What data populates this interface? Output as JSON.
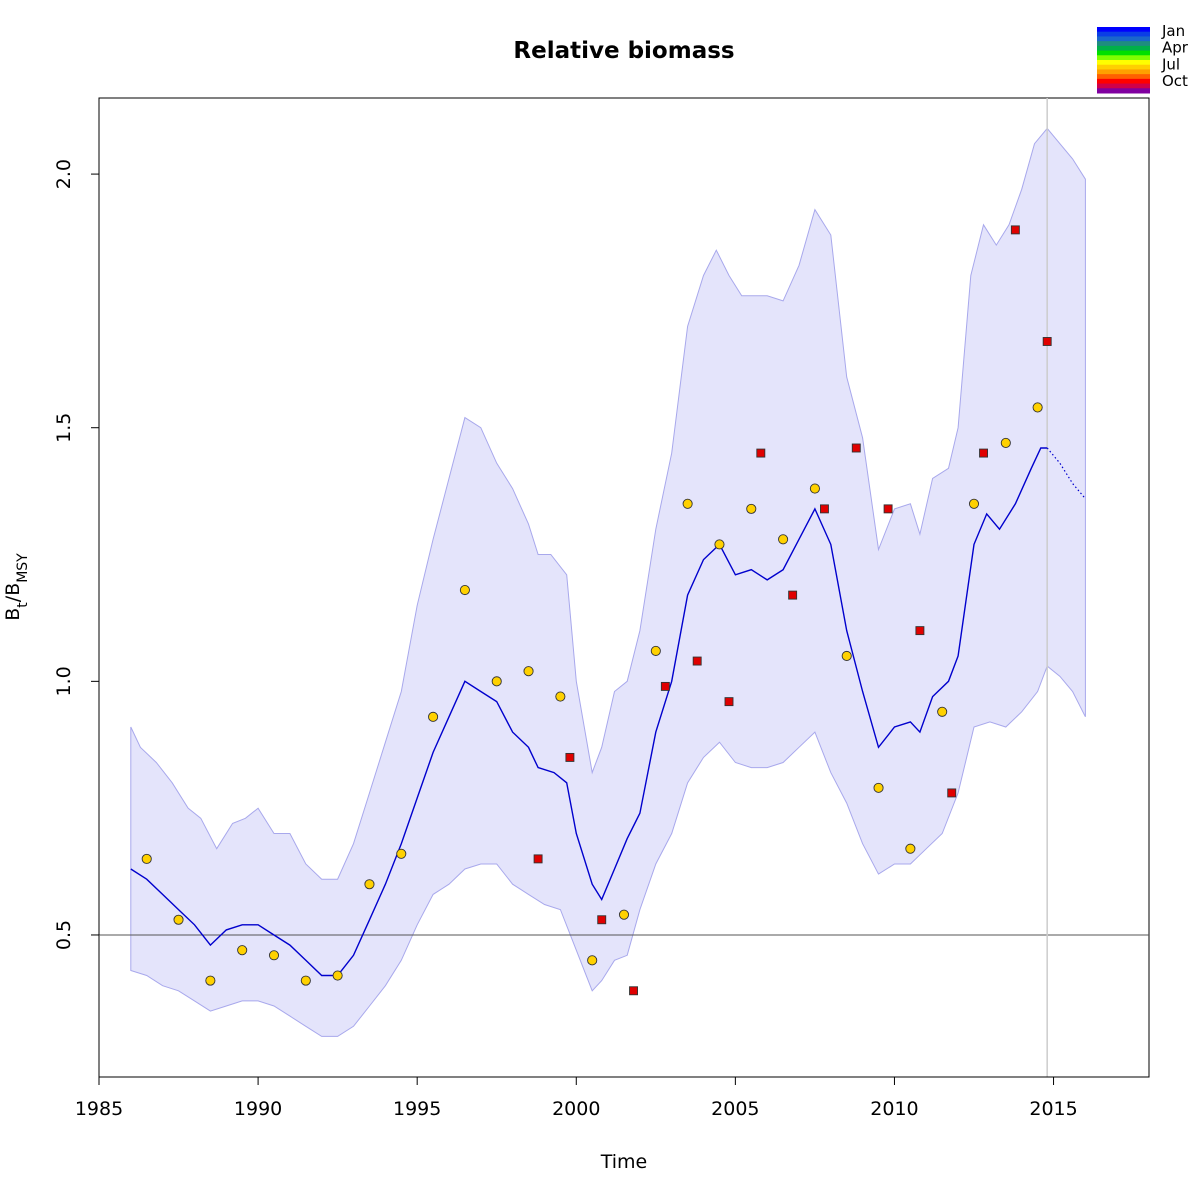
{
  "chart_data": {
    "type": "line",
    "title": "Relative biomass",
    "xlabel": "Time",
    "ylabel": {
      "main": "B",
      "sub1": "t",
      "slash": "/B",
      "sub2": "MSY"
    },
    "xlim": [
      1985,
      2018
    ],
    "ylim": [
      0.22,
      2.15
    ],
    "x_ticks": [
      1985,
      1990,
      1995,
      2000,
      2005,
      2010,
      2015
    ],
    "y_ticks": [
      0.5,
      1.0,
      1.5,
      2.0
    ],
    "x_tick_labels": [
      "1985",
      "1990",
      "1995",
      "2000",
      "2005",
      "2010",
      "2015"
    ],
    "y_tick_labels": [
      "0.5",
      "1.0",
      "1.5",
      "2.0"
    ],
    "reference_line_y": 0.5,
    "reference_line_x": 2014.8,
    "grid": false,
    "legend": {
      "position": "top-right",
      "labels": [
        "Jan",
        "Apr",
        "Jul",
        "Oct"
      ],
      "colors": [
        "#0000ff",
        "#0a3ee6",
        "#1a66cc",
        "#1f8c80",
        "#00b04a",
        "#00e000",
        "#7fff00",
        "#ffff00",
        "#ffd000",
        "#ffa000",
        "#ff6000",
        "#ff0000",
        "#d0004a",
        "#8000a0"
      ]
    },
    "colors": {
      "band_fill": "#e4e4fb",
      "band_edge": "#a8a8ec",
      "line": "#0000cd",
      "circle_fill": "#ffd100",
      "square_fill": "#e00000"
    },
    "series": [
      {
        "type": "band",
        "points": [
          [
            1986,
            0.91
          ],
          [
            1986.3,
            0.87
          ],
          [
            1986.8,
            0.84
          ],
          [
            1987.3,
            0.8
          ],
          [
            1987.8,
            0.75
          ],
          [
            1988.2,
            0.73
          ],
          [
            1988.7,
            0.67
          ],
          [
            1989.2,
            0.72
          ],
          [
            1989.6,
            0.73
          ],
          [
            1990,
            0.75
          ],
          [
            1990.5,
            0.7
          ],
          [
            1991,
            0.7
          ],
          [
            1991.5,
            0.64
          ],
          [
            1992,
            0.61
          ],
          [
            1992.5,
            0.61
          ],
          [
            1993,
            0.68
          ],
          [
            1993.5,
            0.78
          ],
          [
            1994,
            0.88
          ],
          [
            1994.5,
            0.98
          ],
          [
            1995,
            1.15
          ],
          [
            1995.5,
            1.28
          ],
          [
            1996,
            1.4
          ],
          [
            1996.5,
            1.52
          ],
          [
            1997,
            1.5
          ],
          [
            1997.5,
            1.43
          ],
          [
            1998,
            1.38
          ],
          [
            1998.5,
            1.31
          ],
          [
            1998.8,
            1.25
          ],
          [
            1999.2,
            1.25
          ],
          [
            1999.7,
            1.21
          ],
          [
            2000,
            1.0
          ],
          [
            2000.5,
            0.82
          ],
          [
            2000.8,
            0.87
          ],
          [
            2001.2,
            0.98
          ],
          [
            2001.6,
            1.0
          ],
          [
            2002,
            1.1
          ],
          [
            2002.5,
            1.3
          ],
          [
            2003,
            1.45
          ],
          [
            2003.5,
            1.7
          ],
          [
            2004,
            1.8
          ],
          [
            2004.4,
            1.85
          ],
          [
            2004.8,
            1.8
          ],
          [
            2005.2,
            1.76
          ],
          [
            2005.6,
            1.76
          ],
          [
            2006,
            1.76
          ],
          [
            2006.5,
            1.75
          ],
          [
            2007,
            1.82
          ],
          [
            2007.5,
            1.93
          ],
          [
            2008,
            1.88
          ],
          [
            2008.5,
            1.6
          ],
          [
            2009,
            1.48
          ],
          [
            2009.5,
            1.26
          ],
          [
            2010,
            1.34
          ],
          [
            2010.5,
            1.35
          ],
          [
            2010.8,
            1.29
          ],
          [
            2011.2,
            1.4
          ],
          [
            2011.7,
            1.42
          ],
          [
            2012,
            1.5
          ],
          [
            2012.4,
            1.8
          ],
          [
            2012.8,
            1.9
          ],
          [
            2013.2,
            1.86
          ],
          [
            2013.6,
            1.9
          ],
          [
            2014,
            1.97
          ],
          [
            2014.4,
            2.06
          ],
          [
            2014.8,
            2.09
          ],
          [
            2015.2,
            2.06
          ],
          [
            2015.6,
            2.03
          ],
          [
            2016,
            1.99
          ]
        ],
        "lower": [
          [
            1986,
            0.43
          ],
          [
            1986.5,
            0.42
          ],
          [
            1987,
            0.4
          ],
          [
            1987.5,
            0.39
          ],
          [
            1988,
            0.37
          ],
          [
            1988.5,
            0.35
          ],
          [
            1989,
            0.36
          ],
          [
            1989.5,
            0.37
          ],
          [
            1990,
            0.37
          ],
          [
            1990.5,
            0.36
          ],
          [
            1991,
            0.34
          ],
          [
            1991.5,
            0.32
          ],
          [
            1992,
            0.3
          ],
          [
            1992.5,
            0.3
          ],
          [
            1993,
            0.32
          ],
          [
            1993.5,
            0.36
          ],
          [
            1994,
            0.4
          ],
          [
            1994.5,
            0.45
          ],
          [
            1995,
            0.52
          ],
          [
            1995.5,
            0.58
          ],
          [
            1996,
            0.6
          ],
          [
            1996.5,
            0.63
          ],
          [
            1997,
            0.64
          ],
          [
            1997.5,
            0.64
          ],
          [
            1998,
            0.6
          ],
          [
            1998.5,
            0.58
          ],
          [
            1999,
            0.56
          ],
          [
            1999.5,
            0.55
          ],
          [
            2000,
            0.47
          ],
          [
            2000.5,
            0.39
          ],
          [
            2000.8,
            0.41
          ],
          [
            2001.2,
            0.45
          ],
          [
            2001.6,
            0.46
          ],
          [
            2002,
            0.55
          ],
          [
            2002.5,
            0.64
          ],
          [
            2003,
            0.7
          ],
          [
            2003.5,
            0.8
          ],
          [
            2004,
            0.85
          ],
          [
            2004.5,
            0.88
          ],
          [
            2005,
            0.84
          ],
          [
            2005.5,
            0.83
          ],
          [
            2006,
            0.83
          ],
          [
            2006.5,
            0.84
          ],
          [
            2007,
            0.87
          ],
          [
            2007.5,
            0.9
          ],
          [
            2008,
            0.82
          ],
          [
            2008.5,
            0.76
          ],
          [
            2009,
            0.68
          ],
          [
            2009.5,
            0.62
          ],
          [
            2010,
            0.64
          ],
          [
            2010.5,
            0.64
          ],
          [
            2011,
            0.67
          ],
          [
            2011.5,
            0.7
          ],
          [
            2012,
            0.78
          ],
          [
            2012.5,
            0.91
          ],
          [
            2013,
            0.92
          ],
          [
            2013.5,
            0.91
          ],
          [
            2014,
            0.94
          ],
          [
            2014.5,
            0.98
          ],
          [
            2014.8,
            1.03
          ],
          [
            2015.2,
            1.01
          ],
          [
            2015.6,
            0.98
          ],
          [
            2016,
            0.93
          ]
        ]
      },
      {
        "type": "line",
        "name": "",
        "points": [
          [
            1986,
            0.63
          ],
          [
            1986.5,
            0.61
          ],
          [
            1987,
            0.58
          ],
          [
            1987.5,
            0.55
          ],
          [
            1988,
            0.52
          ],
          [
            1988.5,
            0.48
          ],
          [
            1989,
            0.51
          ],
          [
            1989.5,
            0.52
          ],
          [
            1990,
            0.52
          ],
          [
            1990.5,
            0.5
          ],
          [
            1991,
            0.48
          ],
          [
            1991.5,
            0.45
          ],
          [
            1992,
            0.42
          ],
          [
            1992.5,
            0.42
          ],
          [
            1993,
            0.46
          ],
          [
            1993.5,
            0.53
          ],
          [
            1994,
            0.6
          ],
          [
            1994.5,
            0.68
          ],
          [
            1995,
            0.77
          ],
          [
            1995.5,
            0.86
          ],
          [
            1996,
            0.93
          ],
          [
            1996.5,
            1.0
          ],
          [
            1997,
            0.98
          ],
          [
            1997.5,
            0.96
          ],
          [
            1998,
            0.9
          ],
          [
            1998.5,
            0.87
          ],
          [
            1998.8,
            0.83
          ],
          [
            1999.3,
            0.82
          ],
          [
            1999.7,
            0.8
          ],
          [
            2000,
            0.7
          ],
          [
            2000.5,
            0.6
          ],
          [
            2000.8,
            0.57
          ],
          [
            2001.2,
            0.63
          ],
          [
            2001.6,
            0.69
          ],
          [
            2002,
            0.74
          ],
          [
            2002.5,
            0.9
          ],
          [
            2003,
            1.0
          ],
          [
            2003.5,
            1.17
          ],
          [
            2004,
            1.24
          ],
          [
            2004.5,
            1.27
          ],
          [
            2005,
            1.21
          ],
          [
            2005.5,
            1.22
          ],
          [
            2006,
            1.2
          ],
          [
            2006.5,
            1.22
          ],
          [
            2007,
            1.28
          ],
          [
            2007.5,
            1.34
          ],
          [
            2008,
            1.27
          ],
          [
            2008.5,
            1.1
          ],
          [
            2009,
            0.98
          ],
          [
            2009.5,
            0.87
          ],
          [
            2010,
            0.91
          ],
          [
            2010.5,
            0.92
          ],
          [
            2010.8,
            0.9
          ],
          [
            2011.2,
            0.97
          ],
          [
            2011.7,
            1.0
          ],
          [
            2012,
            1.05
          ],
          [
            2012.5,
            1.27
          ],
          [
            2012.9,
            1.33
          ],
          [
            2013.3,
            1.3
          ],
          [
            2013.8,
            1.35
          ],
          [
            2014.3,
            1.42
          ],
          [
            2014.6,
            1.46
          ],
          [
            2014.8,
            1.46
          ]
        ]
      },
      {
        "type": "dotted_line",
        "name": "",
        "points": [
          [
            2014.8,
            1.46
          ],
          [
            2015.2,
            1.43
          ],
          [
            2015.6,
            1.39
          ],
          [
            2016,
            1.36
          ]
        ]
      },
      {
        "type": "scatter",
        "marker": "circle",
        "name": "",
        "points": [
          [
            1986.5,
            0.65
          ],
          [
            1987.5,
            0.53
          ],
          [
            1988.5,
            0.41
          ],
          [
            1989.5,
            0.47
          ],
          [
            1990.5,
            0.46
          ],
          [
            1991.5,
            0.41
          ],
          [
            1992.5,
            0.42
          ],
          [
            1993.5,
            0.6
          ],
          [
            1994.5,
            0.66
          ],
          [
            1995.5,
            0.93
          ],
          [
            1996.5,
            1.18
          ],
          [
            1997.5,
            1.0
          ],
          [
            1998.5,
            1.02
          ],
          [
            1999.5,
            0.97
          ],
          [
            2000.5,
            0.45
          ],
          [
            2001.5,
            0.54
          ],
          [
            2002.5,
            1.06
          ],
          [
            2003.5,
            1.35
          ],
          [
            2004.5,
            1.27
          ],
          [
            2005.5,
            1.34
          ],
          [
            2006.5,
            1.28
          ],
          [
            2007.5,
            1.38
          ],
          [
            2008.5,
            1.05
          ],
          [
            2009.5,
            0.79
          ],
          [
            2010.5,
            0.67
          ],
          [
            2011.5,
            0.94
          ],
          [
            2012.5,
            1.35
          ],
          [
            2013.5,
            1.47
          ],
          [
            2014.5,
            1.54
          ]
        ]
      },
      {
        "type": "scatter",
        "marker": "square",
        "name": "",
        "points": [
          [
            1998.8,
            0.65
          ],
          [
            1999.8,
            0.85
          ],
          [
            2000.8,
            0.53
          ],
          [
            2001.8,
            0.39
          ],
          [
            2002.8,
            0.99
          ],
          [
            2003.8,
            1.04
          ],
          [
            2004.8,
            0.96
          ],
          [
            2005.8,
            1.45
          ],
          [
            2006.8,
            1.17
          ],
          [
            2007.8,
            1.34
          ],
          [
            2008.8,
            1.46
          ],
          [
            2009.8,
            1.34
          ],
          [
            2010.8,
            1.1
          ],
          [
            2011.8,
            0.78
          ],
          [
            2012.8,
            1.45
          ],
          [
            2013.8,
            1.89
          ],
          [
            2014.8,
            1.67
          ]
        ]
      }
    ]
  }
}
